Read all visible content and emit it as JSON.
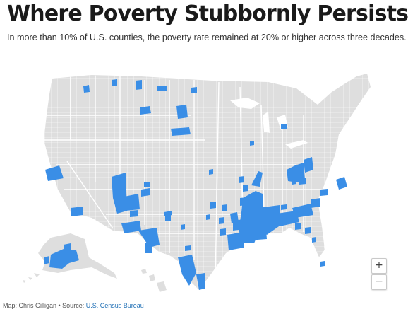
{
  "header": {
    "title": "Where Poverty Stubbornly Persists",
    "subtitle": "In more than 10% of U.S. counties, the poverty rate remained at 20% or higher across three decades."
  },
  "map": {
    "colors": {
      "persistent_poverty": "#3a8ee6",
      "other_county": "#dedede",
      "county_border": "#ffffff",
      "state_border": "#ffffff"
    },
    "controls": {
      "zoom_in": "+",
      "zoom_out": "−"
    }
  },
  "footer": {
    "credit_prefix": "Map: Chris Gilligan • Source: ",
    "source_link": "U.S. Census Bureau"
  }
}
